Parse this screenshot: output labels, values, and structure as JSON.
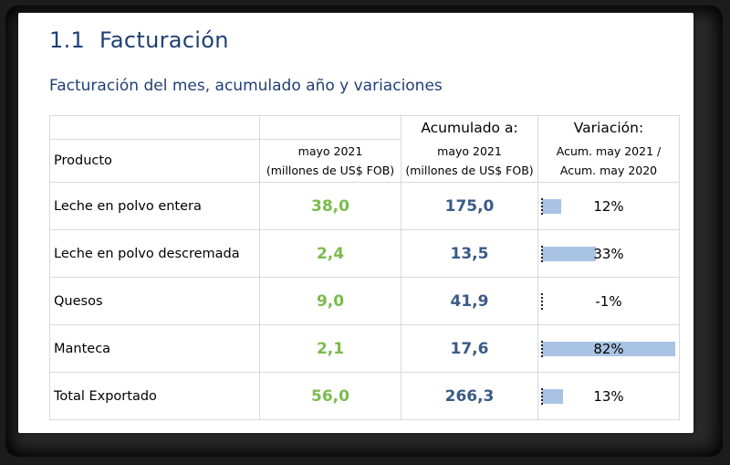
{
  "section": {
    "number": "1.1",
    "title": "Facturación"
  },
  "subtitle": "Facturación del mes, acumulado año y variaciones",
  "table": {
    "header": {
      "producto": "Producto",
      "month_line1": "mayo 2021",
      "month_line2": "(millones de US$ FOB)",
      "acum_title": "Acumulado a:",
      "acum_line1": "mayo 2021",
      "acum_line2": "(millones de US$ FOB)",
      "var_title": "Variación:",
      "var_line1": "Acum. may 2021 /",
      "var_line2": "Acum. may 2020"
    },
    "rows": [
      {
        "producto": "Leche en polvo entera",
        "mes": "38,0",
        "acumulado": "175,0",
        "variacion_label": "12%",
        "variacion": 12
      },
      {
        "producto": "Leche en polvo descremada",
        "mes": "2,4",
        "acumulado": "13,5",
        "variacion_label": "33%",
        "variacion": 33
      },
      {
        "producto": "Quesos",
        "mes": "9,0",
        "acumulado": "41,9",
        "variacion_label": "-1%",
        "variacion": -1
      },
      {
        "producto": "Manteca",
        "mes": "2,1",
        "acumulado": "17,6",
        "variacion_label": "82%",
        "variacion": 82
      },
      {
        "producto": "Total Exportado",
        "mes": "56,0",
        "acumulado": "266,3",
        "variacion_label": "13%",
        "variacion": 13
      }
    ]
  },
  "colors": {
    "title": "#1f3f74",
    "month_values": "#7bbb4d",
    "acum_values": "#3a5b87",
    "bar_fill": "#a9c3e3"
  }
}
